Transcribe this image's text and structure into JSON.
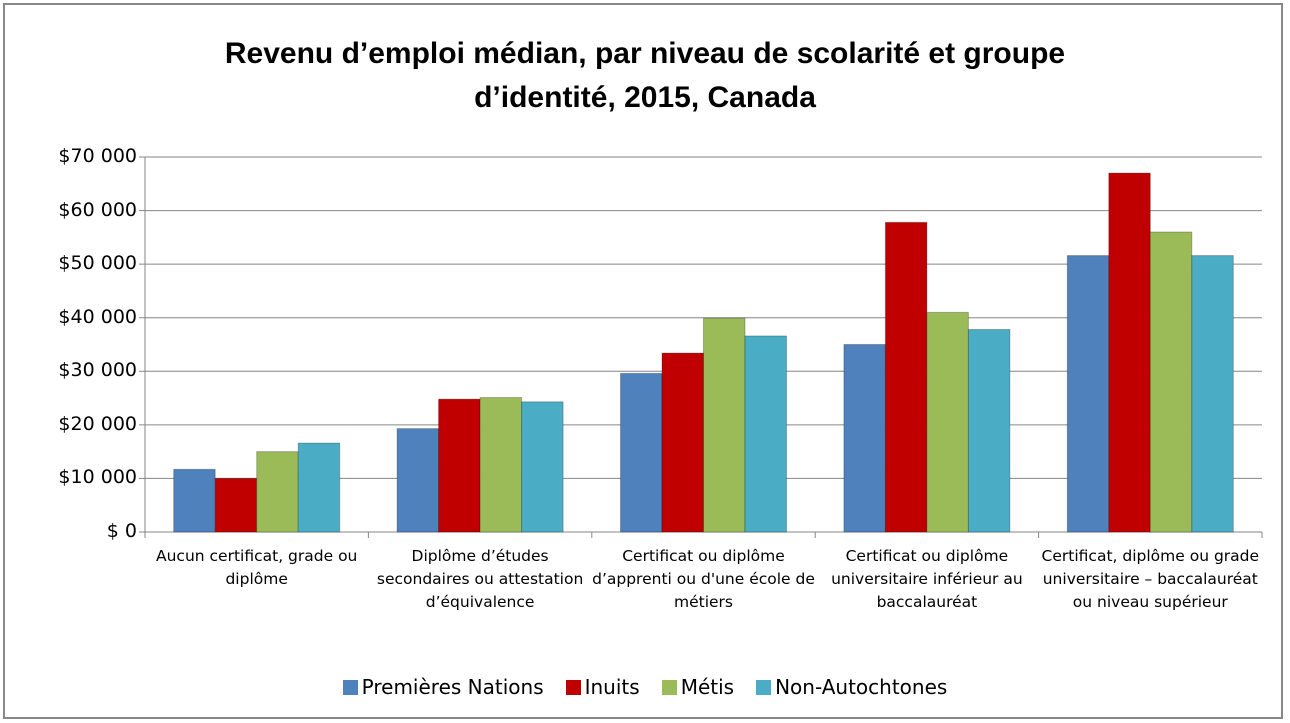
{
  "chart_data": {
    "type": "bar",
    "title": "Revenu d’emploi médian, par niveau de scolarité et groupe d’identité, 2015, Canada",
    "categories": [
      "Aucun certificat, grade ou diplôme",
      "Diplôme d’études secondaires ou attestation d’équivalence",
      "Certificat ou diplôme d’apprenti ou d'une école de métiers",
      "Certificat ou diplôme universitaire inférieur au baccalauréat",
      "Certificat, diplôme ou grade universitaire – baccalauréat ou niveau supérieur"
    ],
    "series": [
      {
        "name": "Premières Nations",
        "color": "#4f81bd",
        "values": [
          11700,
          19300,
          29600,
          35000,
          51600
        ]
      },
      {
        "name": "Inuits",
        "color": "#c00000",
        "values": [
          10000,
          24800,
          33400,
          57800,
          67000
        ]
      },
      {
        "name": "Métis",
        "color": "#9bbb59",
        "values": [
          15000,
          25100,
          39900,
          41000,
          56000
        ]
      },
      {
        "name": "Non-Autochtones",
        "color": "#4bacc6",
        "values": [
          16600,
          24300,
          36600,
          37800,
          51600
        ]
      }
    ],
    "ylim": [
      0,
      70000
    ],
    "yticks": [
      {
        "value": 0,
        "label": "$ 0"
      },
      {
        "value": 10000,
        "label": "$10 000"
      },
      {
        "value": 20000,
        "label": "$20 000"
      },
      {
        "value": 30000,
        "label": "$30 000"
      },
      {
        "value": 40000,
        "label": "$40 000"
      },
      {
        "value": 50000,
        "label": "$50 000"
      },
      {
        "value": 60000,
        "label": "$60 000"
      },
      {
        "value": 70000,
        "label": "$70 000"
      }
    ],
    "grid": true,
    "legend": "bottom"
  }
}
